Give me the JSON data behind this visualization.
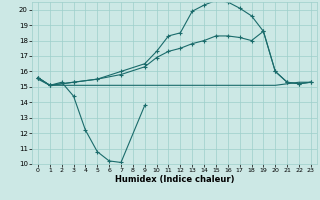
{
  "xlabel": "Humidex (Indice chaleur)",
  "xlim": [
    -0.5,
    23.5
  ],
  "ylim": [
    10,
    20.5
  ],
  "yticks": [
    10,
    11,
    12,
    13,
    14,
    15,
    16,
    17,
    18,
    19,
    20
  ],
  "xticks": [
    0,
    1,
    2,
    3,
    4,
    5,
    6,
    7,
    8,
    9,
    10,
    11,
    12,
    13,
    14,
    15,
    16,
    17,
    18,
    19,
    20,
    21,
    22,
    23
  ],
  "background_color": "#cce8e5",
  "grid_color": "#9ecfcb",
  "line_color": "#1a6b6b",
  "line1_x": [
    0,
    1,
    2,
    3,
    4,
    5,
    6,
    7,
    9
  ],
  "line1_y": [
    15.6,
    15.1,
    15.3,
    14.4,
    12.2,
    10.8,
    10.2,
    10.1,
    13.8
  ],
  "line2_x": [
    0,
    1,
    2,
    3,
    4,
    5,
    6,
    7,
    8,
    9,
    10,
    11,
    12,
    13,
    14,
    15,
    16,
    17,
    18,
    19,
    20,
    21,
    22,
    23
  ],
  "line2_y": [
    15.5,
    15.1,
    15.1,
    15.1,
    15.1,
    15.1,
    15.1,
    15.1,
    15.1,
    15.1,
    15.1,
    15.1,
    15.1,
    15.1,
    15.1,
    15.1,
    15.1,
    15.1,
    15.1,
    15.1,
    15.1,
    15.2,
    15.3,
    15.3
  ],
  "line3_x": [
    0,
    1,
    3,
    5,
    7,
    9,
    10,
    11,
    12,
    13,
    14,
    15,
    16,
    17,
    18,
    19,
    20,
    21,
    22,
    23
  ],
  "line3_y": [
    15.6,
    15.1,
    15.3,
    15.5,
    16.0,
    16.5,
    17.3,
    18.3,
    18.5,
    19.9,
    20.3,
    20.6,
    20.5,
    20.1,
    19.6,
    18.6,
    16.0,
    15.3,
    15.2,
    15.3
  ],
  "line4_x": [
    0,
    1,
    3,
    5,
    7,
    9,
    10,
    11,
    12,
    13,
    14,
    15,
    16,
    17,
    18,
    19,
    20,
    21,
    22,
    23
  ],
  "line4_y": [
    15.6,
    15.1,
    15.3,
    15.5,
    15.8,
    16.3,
    16.9,
    17.3,
    17.5,
    17.8,
    18.0,
    18.3,
    18.3,
    18.2,
    18.0,
    18.6,
    16.0,
    15.3,
    15.2,
    15.3
  ]
}
